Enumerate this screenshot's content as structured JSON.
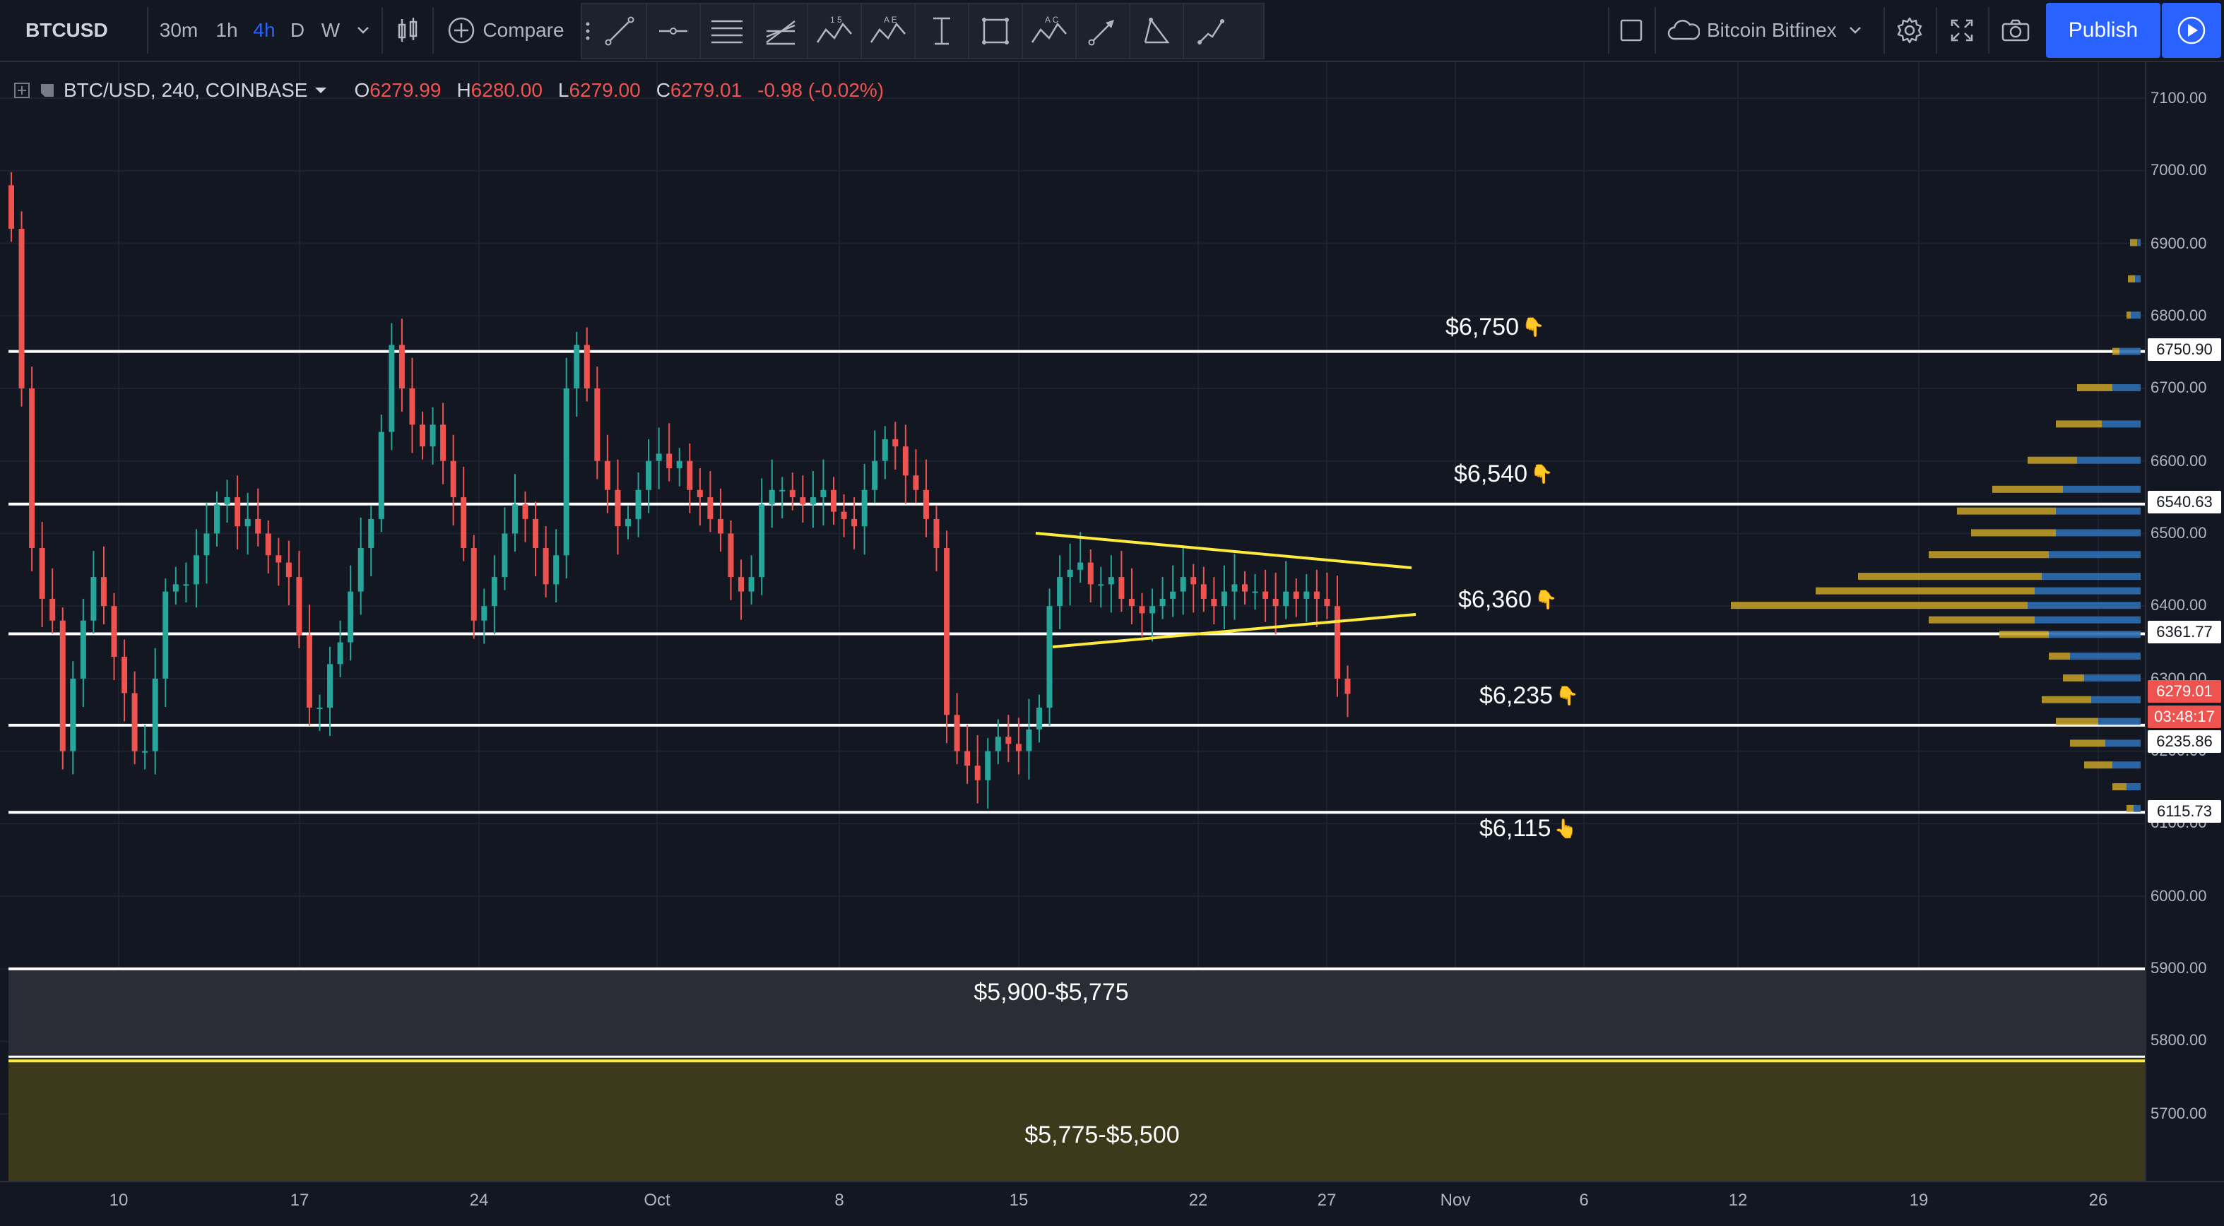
{
  "toolbar": {
    "symbol": "BTCUSD",
    "intervals": [
      "30m",
      "1h",
      "4h",
      "D",
      "W"
    ],
    "active_interval": "4h",
    "compare_label": "Compare",
    "exchange_label": "Bitcoin Bitfinex",
    "publish_label": "Publish",
    "fib_badge": "1 5",
    "ae_badge": "A E",
    "ac_badge": "A C"
  },
  "legend": {
    "title": "BTC/USD, 240, COINBASE",
    "o_label": "O",
    "o_value": "6279.99",
    "h_label": "H",
    "h_value": "6280.00",
    "l_label": "L",
    "l_value": "6279.00",
    "c_label": "C",
    "c_value": "6279.01",
    "change": "-0.98 (-0.02%)"
  },
  "colors": {
    "background": "#131722",
    "up": "#26a69a",
    "down": "#ef5350",
    "level_line": "#ffffff",
    "trendline": "#ffeb3b",
    "vp_gold": "#c9a227",
    "vp_blue": "#2f6db1"
  },
  "annotations": {
    "a6750": "$6,750",
    "a6540": "$6,540",
    "a6360": "$6,360",
    "a6235": "$6,235",
    "a6115": "$6,115",
    "zone1": "$5,900-$5,775",
    "zone2": "$5,775-$5,500",
    "hand_down": "👇",
    "hand_up": "👆"
  },
  "price_axis": {
    "ticks": [
      "7100.00",
      "7000.00",
      "6900.00",
      "6800.00",
      "6700.00",
      "6600.00",
      "6500.00",
      "6400.00",
      "6300.00",
      "6200.00",
      "6100.00",
      "6000.00",
      "5900.00",
      "5800.00",
      "5700.00"
    ],
    "badges": {
      "b6750": "6750.90",
      "b6540": "6540.63",
      "b6361": "6361.77",
      "last": "6279.01",
      "countdown": "03:48:17",
      "b6235": "6235.86",
      "b6115": "6115.73"
    }
  },
  "time_axis": {
    "ticks": [
      "10",
      "17",
      "24",
      "Oct",
      "8",
      "15",
      "22",
      "27",
      "Nov",
      "6",
      "12",
      "19",
      "26"
    ]
  },
  "chart_data": {
    "type": "candlestick",
    "symbol": "BTC/USD",
    "interval": "240",
    "exchange": "COINBASE",
    "last_price": 6279.01,
    "horizontal_levels": [
      6750.9,
      6540.63,
      6361.77,
      6235.86,
      6115.73,
      5900,
      5775
    ],
    "zones": [
      {
        "label": "$5,900-$5,775",
        "from": 5775,
        "to": 5900
      },
      {
        "label": "$5,775-$5,500",
        "from": 5500,
        "to": 5775
      }
    ],
    "triangle": {
      "upper": [
        [
          6495,
          "Oct 16"
        ],
        [
          6450,
          "Oct 30"
        ]
      ],
      "lower": [
        [
          6340,
          "Oct 16"
        ],
        [
          6385,
          "Oct 30"
        ]
      ]
    },
    "candles_close": [
      6920,
      6700,
      6480,
      6410,
      6380,
      6200,
      6300,
      6380,
      6440,
      6400,
      6330,
      6280,
      6200,
      6200,
      6300,
      6420,
      6430,
      6430,
      6470,
      6500,
      6540,
      6550,
      6510,
      6520,
      6500,
      6470,
      6460,
      6440,
      6360,
      6260,
      6260,
      6320,
      6350,
      6420,
      6480,
      6520,
      6640,
      6760,
      6700,
      6650,
      6620,
      6650,
      6600,
      6550,
      6480,
      6380,
      6400,
      6440,
      6500,
      6540,
      6520,
      6480,
      6430,
      6470,
      6700,
      6760,
      6700,
      6600,
      6560,
      6510,
      6520,
      6560,
      6600,
      6610,
      6590,
      6600,
      6560,
      6550,
      6520,
      6500,
      6440,
      6420,
      6440,
      6540,
      6560,
      6560,
      6550,
      6540,
      6550,
      6560,
      6530,
      6520,
      6510,
      6560,
      6600,
      6630,
      6620,
      6580,
      6560,
      6520,
      6480,
      6250,
      6200,
      6180,
      6160,
      6200,
      6220,
      6210,
      6200,
      6230,
      6260,
      6400,
      6440,
      6450,
      6460,
      6430,
      6430,
      6440,
      6410,
      6400,
      6390,
      6400,
      6410,
      6420,
      6440,
      6430,
      6410,
      6400,
      6420,
      6430,
      6420,
      6420,
      6410,
      6400,
      6420,
      6410,
      6420,
      6410,
      6400,
      6300,
      6279
    ]
  }
}
